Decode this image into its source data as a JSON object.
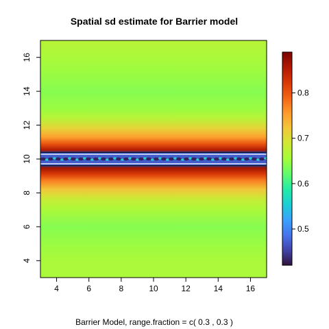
{
  "chart_data": {
    "type": "heatmap",
    "title": "Spatial sd estimate for Barrier model",
    "xlabel": "Barrier Model, range.fraction = c( 0.3 ,  0.3 )",
    "ylabel": "",
    "xlim": [
      3,
      17
    ],
    "ylim": [
      3,
      17
    ],
    "x_ticks": [
      4,
      6,
      8,
      10,
      12,
      14,
      16
    ],
    "y_ticks": [
      4,
      6,
      8,
      10,
      12,
      14,
      16
    ],
    "barrier_band_y": [
      9.6,
      10.4
    ],
    "profile_by_y": [
      {
        "y": 3.0,
        "sd": 0.66
      },
      {
        "y": 4.0,
        "sd": 0.66
      },
      {
        "y": 5.0,
        "sd": 0.65
      },
      {
        "y": 6.0,
        "sd": 0.64
      },
      {
        "y": 7.0,
        "sd": 0.66
      },
      {
        "y": 7.6,
        "sd": 0.68
      },
      {
        "y": 8.2,
        "sd": 0.72
      },
      {
        "y": 8.7,
        "sd": 0.77
      },
      {
        "y": 9.1,
        "sd": 0.82
      },
      {
        "y": 9.5,
        "sd": 0.87
      },
      {
        "y": 9.6,
        "sd": 0.48
      },
      {
        "y": 10.0,
        "sd": 0.46
      },
      {
        "y": 10.4,
        "sd": 0.48
      },
      {
        "y": 10.5,
        "sd": 0.86
      },
      {
        "y": 10.9,
        "sd": 0.8
      },
      {
        "y": 11.3,
        "sd": 0.75
      },
      {
        "y": 11.8,
        "sd": 0.71
      },
      {
        "y": 12.4,
        "sd": 0.67
      },
      {
        "y": 13.0,
        "sd": 0.65
      },
      {
        "y": 14.0,
        "sd": 0.64
      },
      {
        "y": 15.0,
        "sd": 0.65
      },
      {
        "y": 16.0,
        "sd": 0.66
      },
      {
        "y": 17.0,
        "sd": 0.67
      }
    ],
    "legend": {
      "range": [
        0.42,
        0.89
      ],
      "ticks": [
        0.5,
        0.6,
        0.7,
        0.8
      ],
      "tick_labels": [
        "0.5",
        "0.6",
        "0.7",
        "0.8"
      ],
      "colormap": [
        "#30123b",
        "#4145ab",
        "#4675ed",
        "#39a2fc",
        "#1bcfd4",
        "#24eca6",
        "#61fc6c",
        "#a4fc3b",
        "#d1e834",
        "#f3c63a",
        "#fe9b2d",
        "#f36315",
        "#d93806",
        "#b11901",
        "#7a0402"
      ]
    }
  }
}
